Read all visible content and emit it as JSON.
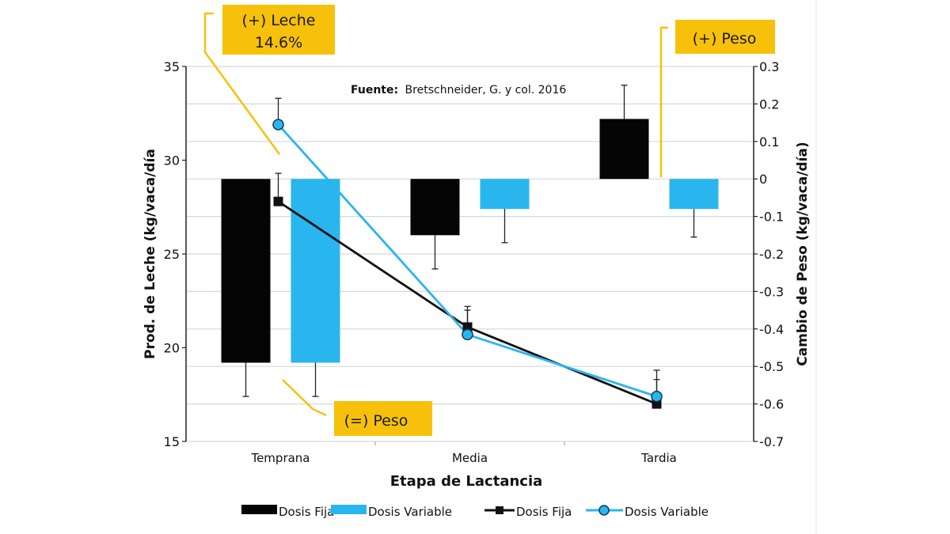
{
  "chart_data": {
    "type": "bar+line",
    "title": "",
    "source": {
      "label": "Fuente:",
      "text": "Bretschneider,  G. y col. 2016"
    },
    "categories": [
      "Temprana",
      "Media",
      "Tardia"
    ],
    "xlabel": "Etapa de Lactancia",
    "ylabel_left": "Prod. de Leche (kg/vaca/día",
    "ylabel_right": "Cambio de Peso (kg/vaca/día)",
    "ylim_left": [
      15,
      35
    ],
    "ylim_right": [
      -0.7,
      0.3
    ],
    "yticks_left": [
      "35",
      "30",
      "25",
      "20",
      "15"
    ],
    "yticks_left_values": [
      35,
      30,
      25,
      20,
      15
    ],
    "yticks_right": [
      "0.3",
      "0.2",
      "0.1",
      "0",
      "-0.1",
      "-0.2",
      "-0.3",
      "-0.4",
      "-0.5",
      "-0.6",
      "-0.7"
    ],
    "yticks_right_values": [
      0.3,
      0.2,
      0.1,
      0,
      -0.1,
      -0.2,
      -0.3,
      -0.4,
      -0.5,
      -0.6,
      -0.7
    ],
    "grid": true,
    "bars_axis": "right",
    "bar_series": [
      {
        "name": "Dosis Fija",
        "color": "#050505",
        "values": [
          -0.49,
          -0.15,
          0.16
        ],
        "error_end": [
          -0.58,
          -0.24,
          0.25
        ]
      },
      {
        "name": "Dosis Variable",
        "color": "#29b6ef",
        "values": [
          -0.49,
          -0.08,
          -0.08
        ],
        "error_end": [
          -0.58,
          -0.17,
          -0.155
        ]
      }
    ],
    "lines_axis": "left",
    "line_series": [
      {
        "name": "Dosis Fija",
        "color": "#111111",
        "marker": "square",
        "values": [
          27.8,
          21.1,
          17.0
        ],
        "error_top": [
          29.3,
          22.2,
          18.8
        ]
      },
      {
        "name": "Dosis Variable",
        "color": "#29b6ef",
        "marker": "circle",
        "values": [
          31.9,
          20.7,
          17.4
        ],
        "error_top": [
          33.3,
          22.0,
          18.3
        ]
      }
    ],
    "legend": {
      "position": "bottom",
      "items": [
        "Dosis Fija",
        "Dosis Variable",
        "Dosis Fija",
        "Dosis Variable"
      ]
    },
    "annotations": [
      {
        "line1": "(+) Leche",
        "line2": "14.6%"
      },
      {
        "line1": "(=) Peso"
      },
      {
        "line1": "(+) Peso"
      }
    ],
    "annotation_color": "#f7c10b"
  }
}
